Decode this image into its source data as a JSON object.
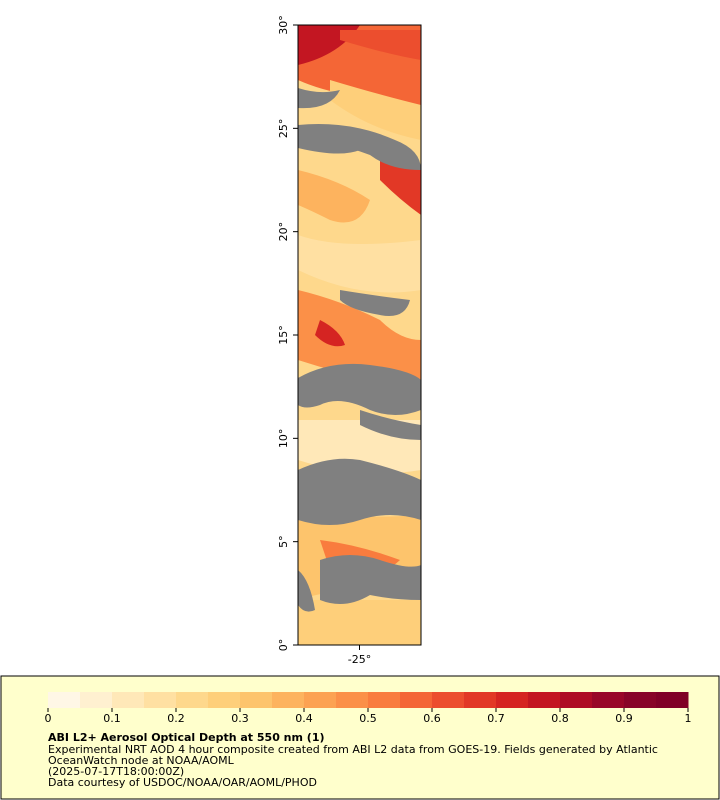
{
  "map": {
    "xlim": [
      -28,
      -22
    ],
    "xticks": [
      {
        "value": -25,
        "label": "-25°"
      }
    ],
    "ylim": [
      0,
      30
    ],
    "yticks": [
      {
        "value": 0,
        "label": "0°"
      },
      {
        "value": 5,
        "label": "5°"
      },
      {
        "value": 10,
        "label": "10°"
      },
      {
        "value": 15,
        "label": "15°"
      },
      {
        "value": 20,
        "label": "20°"
      },
      {
        "value": 25,
        "label": "25°"
      },
      {
        "value": 30,
        "label": "30°"
      }
    ]
  },
  "colorbar": {
    "lim": [
      0,
      1
    ],
    "ticks": [
      0,
      0.1,
      0.2,
      0.3,
      0.4,
      0.5,
      0.6,
      0.7,
      0.8,
      0.9,
      1
    ],
    "colors": [
      "#fff7e6",
      "#fff0d0",
      "#ffe8b8",
      "#ffe0a2",
      "#fed88c",
      "#fecf7a",
      "#fdc46c",
      "#fdb35e",
      "#fca252",
      "#fb9048",
      "#f97c3e",
      "#f46636",
      "#ec4e2e",
      "#e23826",
      "#d52422",
      "#c31622",
      "#ae0c25",
      "#990727",
      "#880427",
      "#800026"
    ]
  },
  "caption": {
    "title": "ABI L2+ Aerosol Optical Depth at 550 nm (1)",
    "lines": [
      "Experimental NRT AOD 4 hour composite created from ABI L2 data from GOES-19. Fields generated by Atlantic",
      "OceanWatch node at NOAA/AOML",
      "(2025-07-17T18:00:00Z)",
      "Data courtesy of USDOC/NOAA/OAR/AOML/PHOD"
    ]
  }
}
